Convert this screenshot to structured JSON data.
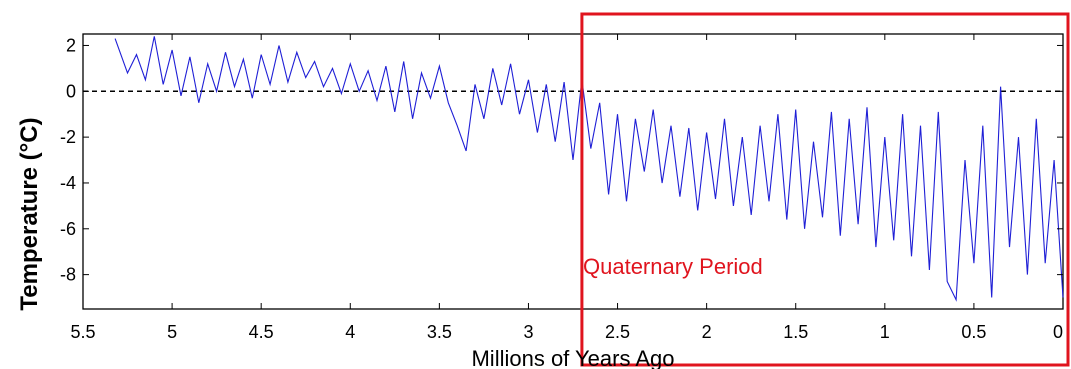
{
  "chart_data": {
    "type": "line",
    "xlabel": "Millions of Years Ago",
    "ylabel": "Temperature (°C)",
    "xlim": [
      5.5,
      0
    ],
    "ylim": [
      -9.5,
      2.5
    ],
    "x_ticks": [
      "5.5",
      "5",
      "4.5",
      "4",
      "3.5",
      "3",
      "2.5",
      "2",
      "1.5",
      "1",
      "0.5",
      "0"
    ],
    "y_ticks": [
      "2",
      "0",
      "-2",
      "-4",
      "-6",
      "-8"
    ],
    "x_tick_values": [
      5.5,
      5,
      4.5,
      4,
      3.5,
      3,
      2.5,
      2,
      1.5,
      1,
      0.5,
      0
    ],
    "y_tick_values": [
      2,
      0,
      -2,
      -4,
      -6,
      -8
    ],
    "grid": false,
    "reference_line": {
      "y": 0,
      "style": "dashed"
    },
    "annotation": {
      "label": "Quaternary Period",
      "x_start": 2.7,
      "x_end": 0,
      "color": "#e0141e"
    },
    "series": [
      {
        "color": "#1f1fd6",
        "x": [
          5.32,
          5.25,
          5.2,
          5.15,
          5.1,
          5.05,
          5.0,
          4.95,
          4.9,
          4.85,
          4.8,
          4.75,
          4.7,
          4.65,
          4.6,
          4.55,
          4.5,
          4.45,
          4.4,
          4.35,
          4.3,
          4.25,
          4.2,
          4.15,
          4.1,
          4.05,
          4.0,
          3.95,
          3.9,
          3.85,
          3.8,
          3.75,
          3.7,
          3.65,
          3.6,
          3.55,
          3.5,
          3.45,
          3.4,
          3.35,
          3.3,
          3.25,
          3.2,
          3.15,
          3.1,
          3.05,
          3.0,
          2.95,
          2.9,
          2.85,
          2.8,
          2.75,
          2.7,
          2.65,
          2.6,
          2.55,
          2.5,
          2.45,
          2.4,
          2.35,
          2.3,
          2.25,
          2.2,
          2.15,
          2.1,
          2.05,
          2.0,
          1.95,
          1.9,
          1.85,
          1.8,
          1.75,
          1.7,
          1.65,
          1.6,
          1.55,
          1.5,
          1.45,
          1.4,
          1.35,
          1.3,
          1.25,
          1.2,
          1.15,
          1.1,
          1.05,
          1.0,
          0.95,
          0.9,
          0.85,
          0.8,
          0.75,
          0.7,
          0.65,
          0.6,
          0.55,
          0.5,
          0.45,
          0.4,
          0.35,
          0.3,
          0.25,
          0.2,
          0.15,
          0.1,
          0.05,
          0.0
        ],
        "y": [
          2.3,
          0.8,
          1.6,
          0.5,
          2.4,
          0.3,
          1.8,
          -0.2,
          1.5,
          -0.5,
          1.2,
          0.0,
          1.7,
          0.2,
          1.4,
          -0.3,
          1.6,
          0.3,
          2.0,
          0.4,
          1.7,
          0.6,
          1.3,
          0.2,
          1.0,
          -0.1,
          1.2,
          0.0,
          0.9,
          -0.4,
          1.1,
          -0.9,
          1.3,
          -1.2,
          0.8,
          -0.3,
          1.1,
          -0.5,
          -1.5,
          -2.6,
          0.3,
          -1.2,
          1.0,
          -0.6,
          1.2,
          -1.0,
          0.5,
          -1.8,
          0.3,
          -2.2,
          0.4,
          -3.0,
          0.5,
          -2.5,
          -0.5,
          -4.5,
          -1.0,
          -4.8,
          -1.2,
          -3.5,
          -0.8,
          -4.0,
          -1.5,
          -4.6,
          -1.6,
          -5.2,
          -1.8,
          -4.7,
          -1.2,
          -5.0,
          -2.0,
          -5.4,
          -1.5,
          -4.8,
          -1.0,
          -5.6,
          -0.8,
          -6.0,
          -2.2,
          -5.5,
          -0.9,
          -6.3,
          -1.2,
          -5.8,
          -0.7,
          -6.8,
          -2.0,
          -6.5,
          -1.0,
          -7.2,
          -1.5,
          -7.8,
          -0.9,
          -8.3,
          -9.1,
          -3.0,
          -7.5,
          -1.5,
          -9.0,
          0.2,
          -6.8,
          -2.0,
          -8.0,
          -1.2,
          -7.5,
          -3.0,
          -9.0
        ]
      }
    ]
  }
}
